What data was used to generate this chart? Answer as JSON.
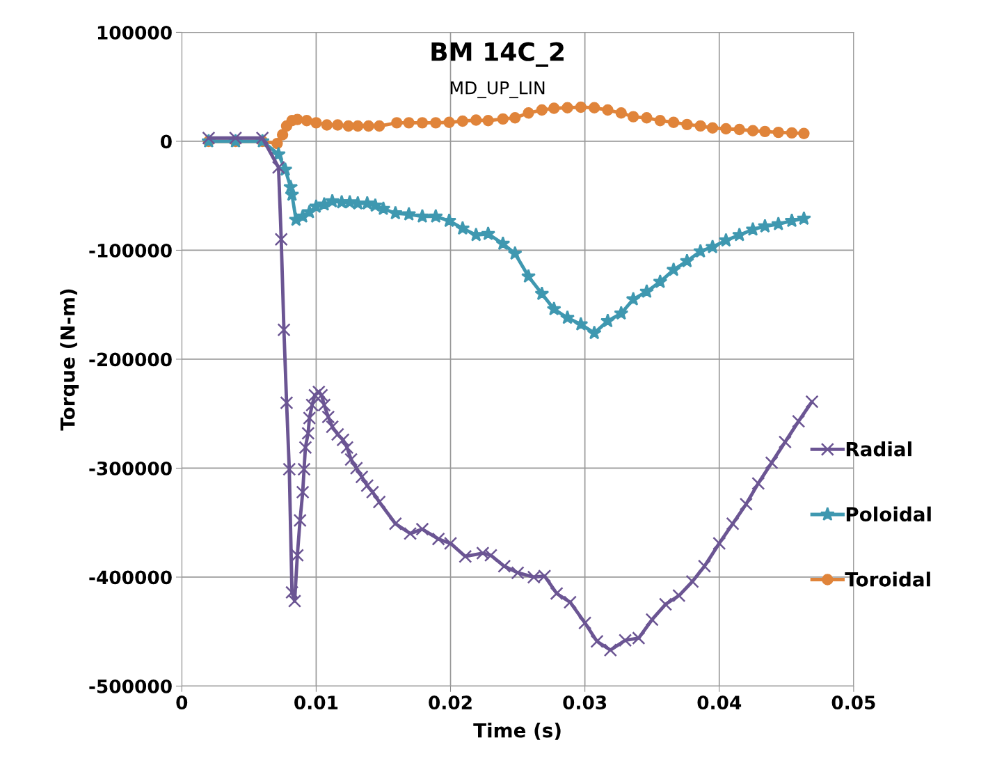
{
  "chart_data": {
    "type": "line",
    "title": "BM 14C_2",
    "subtitle": "MD_UP_LIN",
    "xlabel": "Time (s)",
    "ylabel": "Torque (N-m)",
    "xlim": [
      0,
      0.05
    ],
    "xticks": [
      0,
      0.01,
      0.02,
      0.03,
      0.04,
      0.05
    ],
    "ylim": [
      -500000,
      100000
    ],
    "yticks": [
      -500000,
      -400000,
      -300000,
      -200000,
      -100000,
      0,
      100000
    ],
    "grid": true,
    "legend": "right",
    "series": [
      {
        "name": "Radial",
        "color": "#6b5593",
        "marker": "cross",
        "x": [
          0.002,
          0.004,
          0.006,
          0.0072,
          0.0074,
          0.0076,
          0.0078,
          0.008,
          0.0082,
          0.0084,
          0.0086,
          0.0088,
          0.009,
          0.0091,
          0.0092,
          0.0094,
          0.0095,
          0.0097,
          0.0099,
          0.0102,
          0.0104,
          0.0106,
          0.0109,
          0.0112,
          0.0116,
          0.012,
          0.0123,
          0.0126,
          0.013,
          0.0134,
          0.0138,
          0.0142,
          0.0147,
          0.0159,
          0.017,
          0.0179,
          0.0191,
          0.02,
          0.0211,
          0.0224,
          0.023,
          0.024,
          0.025,
          0.0262,
          0.027,
          0.0279,
          0.0289,
          0.03,
          0.0309,
          0.0319,
          0.033,
          0.034,
          0.035,
          0.036,
          0.037,
          0.038,
          0.0389,
          0.04,
          0.041,
          0.042,
          0.0429,
          0.0439,
          0.0449,
          0.0459,
          0.0469
        ],
        "values": [
          3000,
          3000,
          3000,
          -24000,
          -90000,
          -173000,
          -240000,
          -301000,
          -414000,
          -422000,
          -380000,
          -348000,
          -322000,
          -301000,
          -281000,
          -268000,
          -254000,
          -242000,
          -233000,
          -230000,
          -233000,
          -242000,
          -253000,
          -262000,
          -269000,
          -274000,
          -281000,
          -292000,
          -300000,
          -308000,
          -316000,
          -322000,
          -331000,
          -351000,
          -360000,
          -356000,
          -365000,
          -369000,
          -381000,
          -378000,
          -380000,
          -390000,
          -396000,
          -400000,
          -399000,
          -415000,
          -423000,
          -442000,
          -459000,
          -467000,
          -458000,
          -456000,
          -439000,
          -425000,
          -417000,
          -404000,
          -390000,
          -369000,
          -351000,
          -333000,
          -314000,
          -295000,
          -276000,
          -257000,
          -239000
        ]
      },
      {
        "name": "Poloidal",
        "color": "#3f98b0",
        "marker": "star",
        "x": [
          0.002,
          0.004,
          0.006,
          0.0072,
          0.0077,
          0.0081,
          0.0082,
          0.0085,
          0.009,
          0.0095,
          0.01,
          0.0106,
          0.0112,
          0.0119,
          0.0125,
          0.0131,
          0.0138,
          0.0144,
          0.015,
          0.0159,
          0.0169,
          0.0179,
          0.0189,
          0.0199,
          0.0209,
          0.0219,
          0.0228,
          0.0239,
          0.0248,
          0.0258,
          0.0268,
          0.0277,
          0.0287,
          0.0297,
          0.0307,
          0.0317,
          0.0327,
          0.0336,
          0.0346,
          0.0356,
          0.0366,
          0.0376,
          0.0386,
          0.0395,
          0.0405,
          0.0415,
          0.0425,
          0.0434,
          0.0444,
          0.0454,
          0.0463
        ],
        "values": [
          0,
          0,
          0,
          -12000,
          -26000,
          -42000,
          -49000,
          -72000,
          -69000,
          -65000,
          -60000,
          -58000,
          -55000,
          -56000,
          -56000,
          -57000,
          -57000,
          -59000,
          -62000,
          -66000,
          -67000,
          -69000,
          -69000,
          -73000,
          -80000,
          -86000,
          -85000,
          -94000,
          -103000,
          -124000,
          -140000,
          -154000,
          -162000,
          -168000,
          -176000,
          -165000,
          -158000,
          -145000,
          -138000,
          -129000,
          -118000,
          -110000,
          -101000,
          -97000,
          -91000,
          -86000,
          -81000,
          -78000,
          -76000,
          -73000,
          -71000
        ]
      },
      {
        "name": "Toroidal",
        "color": "#e0843a",
        "marker": "circle",
        "x": [
          0.002,
          0.004,
          0.006,
          0.0071,
          0.0075,
          0.0078,
          0.0082,
          0.0086,
          0.0093,
          0.01,
          0.0108,
          0.0116,
          0.0124,
          0.0131,
          0.0139,
          0.0147,
          0.016,
          0.0169,
          0.0179,
          0.0189,
          0.0199,
          0.0209,
          0.0219,
          0.0228,
          0.0239,
          0.0248,
          0.0258,
          0.0268,
          0.0277,
          0.0287,
          0.0297,
          0.0307,
          0.0317,
          0.0327,
          0.0336,
          0.0346,
          0.0356,
          0.0366,
          0.0376,
          0.0386,
          0.0395,
          0.0405,
          0.0415,
          0.0425,
          0.0434,
          0.0444,
          0.0454,
          0.0463
        ],
        "values": [
          0,
          0,
          0,
          -2000,
          6000,
          14000,
          19000,
          20000,
          19000,
          17000,
          15000,
          15000,
          14000,
          14000,
          14000,
          14000,
          17000,
          17000,
          17000,
          17000,
          17400,
          18500,
          19500,
          19000,
          20500,
          21500,
          26000,
          28700,
          30300,
          30800,
          31300,
          30800,
          28700,
          26000,
          22600,
          21500,
          19000,
          17400,
          15400,
          14100,
          12300,
          11500,
          10800,
          9700,
          9000,
          8200,
          7700,
          7200
        ]
      }
    ]
  }
}
